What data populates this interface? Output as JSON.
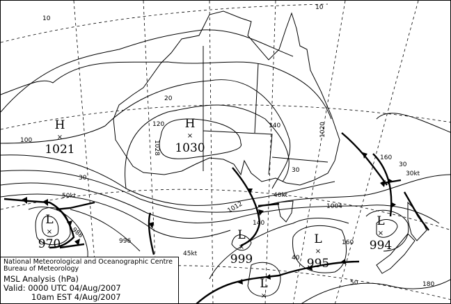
{
  "map": {
    "highs": [
      {
        "symbol": "H",
        "value": "1021"
      },
      {
        "symbol": "H",
        "value": "1030"
      }
    ],
    "lows": [
      {
        "symbol": "L",
        "value": "970"
      },
      {
        "symbol": "L",
        "value": "999"
      },
      {
        "symbol": "L",
        "value": "995"
      },
      {
        "symbol": "L",
        "value": "994"
      },
      {
        "symbol": "L",
        "value": ""
      }
    ],
    "center_mark": "×",
    "isobar_labels": [
      "1012",
      "1004",
      "996",
      "988",
      "1028",
      "1020"
    ],
    "wind_labels": [
      "50kt",
      "45kt",
      "40kt",
      "30kt"
    ],
    "graticule_labels": [
      "10",
      "10",
      "100",
      "120",
      "140",
      "160",
      "180",
      "30",
      "30",
      "40",
      "50",
      "30",
      "20",
      "160",
      "140"
    ]
  },
  "info": {
    "centre": "National Meteorological and Oceanographic Centre",
    "bureau": "Bureau of Meteorology",
    "product": "MSL Analysis (hPa)",
    "valid_utc": "Valid: 0000 UTC 04/Aug/2007",
    "valid_local": "10am EST 4/Aug/2007"
  }
}
